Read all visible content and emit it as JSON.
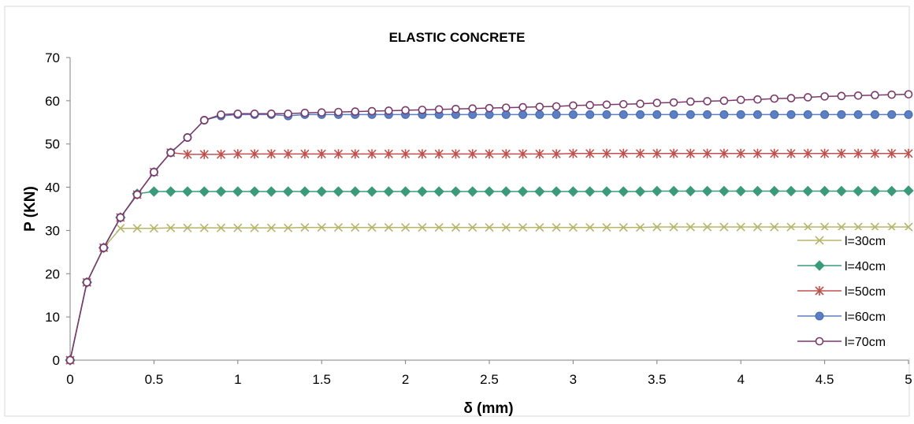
{
  "chart_data": {
    "type": "line",
    "title": "ELASTIC CONCRETE",
    "xlabel": "δ (mm)",
    "ylabel": "P (KN)",
    "xlim": [
      0,
      5
    ],
    "ylim": [
      0,
      70
    ],
    "x_ticks": [
      "0",
      "0.5",
      "1",
      "1.5",
      "2",
      "2.5",
      "3",
      "3.5",
      "4",
      "4.5",
      "5"
    ],
    "y_ticks": [
      "0",
      "10",
      "20",
      "30",
      "40",
      "50",
      "60",
      "70"
    ],
    "grid": false,
    "legend_position": "bottom-right",
    "series": [
      {
        "name": "l=30cm",
        "color": "#b5b56a",
        "marker": "x",
        "x": [
          0,
          0.1,
          0.2,
          0.3,
          0.4,
          0.5,
          0.6,
          0.7,
          0.8,
          0.9,
          1.0,
          1.1,
          1.2,
          1.3,
          1.4,
          1.5,
          1.6,
          1.7,
          1.8,
          1.9,
          2.0,
          2.1,
          2.2,
          2.3,
          2.4,
          2.5,
          2.6,
          2.7,
          2.8,
          2.9,
          3.0,
          3.1,
          3.2,
          3.3,
          3.4,
          3.5,
          3.6,
          3.7,
          3.8,
          3.9,
          4.0,
          4.1,
          4.2,
          4.3,
          4.4,
          4.5,
          4.6,
          4.7,
          4.8,
          4.9,
          5.0
        ],
        "y": [
          0,
          18,
          26,
          30.5,
          30.5,
          30.5,
          30.6,
          30.6,
          30.6,
          30.6,
          30.6,
          30.6,
          30.6,
          30.6,
          30.7,
          30.7,
          30.7,
          30.7,
          30.7,
          30.7,
          30.7,
          30.7,
          30.7,
          30.7,
          30.7,
          30.7,
          30.7,
          30.7,
          30.7,
          30.7,
          30.7,
          30.7,
          30.7,
          30.7,
          30.7,
          30.8,
          30.8,
          30.8,
          30.8,
          30.8,
          30.8,
          30.8,
          30.8,
          30.8,
          30.8,
          30.8,
          30.8,
          30.8,
          30.8,
          30.8,
          30.8
        ]
      },
      {
        "name": "l=40cm",
        "color": "#3a9a7a",
        "marker": "diamond",
        "x": [
          0,
          0.1,
          0.2,
          0.3,
          0.4,
          0.5,
          0.6,
          0.7,
          0.8,
          0.9,
          1.0,
          1.1,
          1.2,
          1.3,
          1.4,
          1.5,
          1.6,
          1.7,
          1.8,
          1.9,
          2.0,
          2.1,
          2.2,
          2.3,
          2.4,
          2.5,
          2.6,
          2.7,
          2.8,
          2.9,
          3.0,
          3.1,
          3.2,
          3.3,
          3.4,
          3.5,
          3.6,
          3.7,
          3.8,
          3.9,
          4.0,
          4.1,
          4.2,
          4.3,
          4.4,
          4.5,
          4.6,
          4.7,
          4.8,
          4.9,
          5.0
        ],
        "y": [
          0,
          18,
          26,
          33,
          38.5,
          39,
          39,
          39,
          39,
          39,
          39,
          39,
          39,
          39,
          39,
          39,
          39,
          39,
          39,
          39,
          39,
          39,
          39,
          39,
          39,
          39,
          39,
          39,
          39,
          39,
          39,
          39,
          39,
          39,
          39,
          39.1,
          39.1,
          39.1,
          39.1,
          39.1,
          39.1,
          39.1,
          39.1,
          39.1,
          39.1,
          39.1,
          39.1,
          39.1,
          39.1,
          39.1,
          39.2
        ]
      },
      {
        "name": "l=50cm",
        "color": "#c0504d",
        "marker": "asterisk",
        "x": [
          0,
          0.1,
          0.2,
          0.3,
          0.4,
          0.5,
          0.6,
          0.7,
          0.8,
          0.9,
          1.0,
          1.1,
          1.2,
          1.3,
          1.4,
          1.5,
          1.6,
          1.7,
          1.8,
          1.9,
          2.0,
          2.1,
          2.2,
          2.3,
          2.4,
          2.5,
          2.6,
          2.7,
          2.8,
          2.9,
          3.0,
          3.1,
          3.2,
          3.3,
          3.4,
          3.5,
          3.6,
          3.7,
          3.8,
          3.9,
          4.0,
          4.1,
          4.2,
          4.3,
          4.4,
          4.5,
          4.6,
          4.7,
          4.8,
          4.9,
          5.0
        ],
        "y": [
          0,
          18,
          26,
          33,
          38.3,
          43.5,
          48,
          47.6,
          47.6,
          47.6,
          47.7,
          47.7,
          47.7,
          47.7,
          47.7,
          47.7,
          47.7,
          47.7,
          47.7,
          47.7,
          47.7,
          47.7,
          47.7,
          47.7,
          47.7,
          47.7,
          47.7,
          47.7,
          47.7,
          47.7,
          47.8,
          47.8,
          47.8,
          47.8,
          47.8,
          47.8,
          47.8,
          47.8,
          47.8,
          47.8,
          47.8,
          47.8,
          47.8,
          47.8,
          47.8,
          47.8,
          47.8,
          47.8,
          47.8,
          47.8,
          47.8
        ]
      },
      {
        "name": "l=60cm",
        "color": "#5b7fc4",
        "marker": "circle",
        "x": [
          0,
          0.1,
          0.2,
          0.3,
          0.4,
          0.5,
          0.6,
          0.7,
          0.8,
          0.9,
          1.0,
          1.1,
          1.2,
          1.3,
          1.4,
          1.5,
          1.6,
          1.7,
          1.8,
          1.9,
          2.0,
          2.1,
          2.2,
          2.3,
          2.4,
          2.5,
          2.6,
          2.7,
          2.8,
          2.9,
          3.0,
          3.1,
          3.2,
          3.3,
          3.4,
          3.5,
          3.6,
          3.7,
          3.8,
          3.9,
          4.0,
          4.1,
          4.2,
          4.3,
          4.4,
          4.5,
          4.6,
          4.7,
          4.8,
          4.9,
          5.0
        ],
        "y": [
          0,
          18,
          26,
          33,
          38.3,
          43.5,
          48,
          51.5,
          55.5,
          56.5,
          56.8,
          56.8,
          56.8,
          56.5,
          56.8,
          56.8,
          56.8,
          56.8,
          56.8,
          56.8,
          56.8,
          56.8,
          56.8,
          56.8,
          56.8,
          56.8,
          56.8,
          56.8,
          56.8,
          56.8,
          56.8,
          56.8,
          56.8,
          56.8,
          56.8,
          56.8,
          56.8,
          56.8,
          56.8,
          56.8,
          56.8,
          56.8,
          56.8,
          56.8,
          56.8,
          56.8,
          56.8,
          56.8,
          56.8,
          56.8,
          56.8
        ]
      },
      {
        "name": "l=70cm",
        "color": "#7a3a6a",
        "marker": "open-circle",
        "x": [
          0,
          0.1,
          0.2,
          0.3,
          0.4,
          0.5,
          0.6,
          0.7,
          0.8,
          0.9,
          1.0,
          1.1,
          1.2,
          1.3,
          1.4,
          1.5,
          1.6,
          1.7,
          1.8,
          1.9,
          2.0,
          2.1,
          2.2,
          2.3,
          2.4,
          2.5,
          2.6,
          2.7,
          2.8,
          2.9,
          3.0,
          3.1,
          3.2,
          3.3,
          3.4,
          3.5,
          3.6,
          3.7,
          3.8,
          3.9,
          4.0,
          4.1,
          4.2,
          4.3,
          4.4,
          4.5,
          4.6,
          4.7,
          4.8,
          4.9,
          5.0
        ],
        "y": [
          0,
          18,
          26,
          33,
          38.3,
          43.5,
          48,
          51.5,
          55.5,
          56.8,
          57,
          57,
          57,
          57,
          57.2,
          57.3,
          57.4,
          57.5,
          57.6,
          57.7,
          57.8,
          57.9,
          58,
          58.1,
          58.2,
          58.3,
          58.4,
          58.5,
          58.6,
          58.7,
          58.9,
          59,
          59.1,
          59.2,
          59.3,
          59.5,
          59.6,
          59.8,
          59.9,
          60,
          60.2,
          60.3,
          60.5,
          60.6,
          60.8,
          61,
          61.1,
          61.2,
          61.3,
          61.4,
          61.5
        ]
      }
    ]
  }
}
